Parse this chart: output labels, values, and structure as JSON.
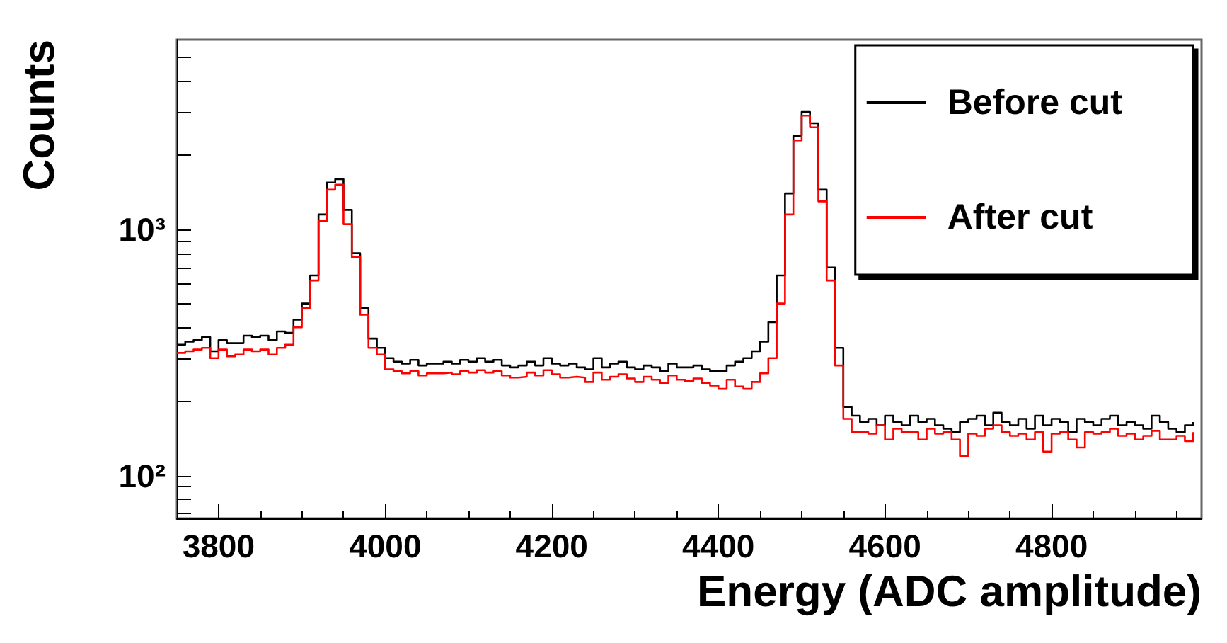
{
  "chart_data": {
    "type": "step",
    "xlabel": "Energy (ADC amplitude)",
    "ylabel": "Counts",
    "x": [
      3750,
      3760,
      3770,
      3780,
      3790,
      3800,
      3810,
      3820,
      3830,
      3840,
      3850,
      3860,
      3870,
      3880,
      3890,
      3900,
      3910,
      3920,
      3930,
      3940,
      3950,
      3960,
      3970,
      3980,
      3990,
      4000,
      4010,
      4020,
      4030,
      4040,
      4050,
      4060,
      4070,
      4080,
      4090,
      4100,
      4110,
      4120,
      4130,
      4140,
      4150,
      4160,
      4170,
      4180,
      4190,
      4200,
      4210,
      4220,
      4230,
      4240,
      4250,
      4260,
      4270,
      4280,
      4290,
      4300,
      4310,
      4320,
      4330,
      4340,
      4350,
      4360,
      4370,
      4380,
      4390,
      4400,
      4410,
      4420,
      4430,
      4440,
      4450,
      4460,
      4470,
      4480,
      4490,
      4500,
      4510,
      4520,
      4530,
      4540,
      4550,
      4560,
      4570,
      4580,
      4590,
      4600,
      4610,
      4620,
      4630,
      4640,
      4650,
      4660,
      4670,
      4680,
      4690,
      4700,
      4710,
      4720,
      4730,
      4740,
      4750,
      4760,
      4770,
      4780,
      4790,
      4800,
      4810,
      4820,
      4830,
      4840,
      4850,
      4860,
      4870,
      4880,
      4890,
      4900,
      4910,
      4920,
      4930,
      4940,
      4950,
      4960,
      4970
    ],
    "series": [
      {
        "name": "Before cut",
        "color": "#000000",
        "values": [
          340,
          350,
          355,
          365,
          320,
          355,
          345,
          345,
          370,
          365,
          370,
          355,
          385,
          380,
          430,
          500,
          650,
          1150,
          1550,
          1600,
          1200,
          800,
          480,
          360,
          330,
          300,
          290,
          285,
          295,
          280,
          285,
          285,
          290,
          285,
          295,
          290,
          300,
          290,
          295,
          280,
          275,
          280,
          290,
          280,
          300,
          285,
          280,
          285,
          275,
          270,
          300,
          275,
          285,
          290,
          275,
          270,
          280,
          275,
          265,
          285,
          275,
          275,
          280,
          270,
          265,
          265,
          280,
          290,
          300,
          320,
          350,
          420,
          650,
          1400,
          2400,
          3000,
          2700,
          1450,
          700,
          330,
          190,
          175,
          165,
          170,
          160,
          175,
          165,
          160,
          175,
          165,
          170,
          160,
          155,
          150,
          165,
          170,
          175,
          160,
          180,
          165,
          160,
          170,
          155,
          175,
          160,
          170,
          165,
          150,
          170,
          165,
          160,
          170,
          175,
          160,
          165,
          160,
          155,
          175,
          165,
          155,
          150,
          160,
          165
        ]
      },
      {
        "name": "After cut",
        "color": "#ff0000",
        "values": [
          315,
          320,
          325,
          330,
          300,
          325,
          305,
          310,
          325,
          320,
          325,
          310,
          330,
          340,
          400,
          480,
          620,
          1080,
          1450,
          1520,
          1050,
          770,
          450,
          330,
          310,
          270,
          265,
          260,
          265,
          255,
          260,
          260,
          262,
          258,
          265,
          262,
          268,
          262,
          265,
          255,
          250,
          252,
          262,
          255,
          268,
          258,
          250,
          252,
          250,
          240,
          262,
          245,
          252,
          258,
          248,
          240,
          252,
          245,
          238,
          255,
          245,
          242,
          248,
          238,
          232,
          225,
          245,
          230,
          225,
          240,
          260,
          300,
          500,
          1150,
          2300,
          2900,
          2600,
          1300,
          620,
          280,
          170,
          150,
          150,
          148,
          160,
          140,
          155,
          150,
          150,
          140,
          155,
          148,
          150,
          140,
          120,
          148,
          145,
          155,
          160,
          150,
          145,
          148,
          140,
          150,
          125,
          148,
          150,
          140,
          130,
          150,
          148,
          150,
          155,
          145,
          148,
          140,
          145,
          152,
          140,
          140,
          145,
          138,
          150
        ]
      }
    ],
    "xlim": [
      3750,
      4980
    ],
    "xticks": [
      3800,
      4000,
      4200,
      4400,
      4600,
      4800
    ],
    "ylim": [
      67,
      5900
    ],
    "yticks": [
      {
        "value": 70,
        "label": null
      },
      {
        "value": 80,
        "label": null
      },
      {
        "value": 90,
        "label": null
      },
      {
        "value": 100,
        "label": "10²"
      },
      {
        "value": 200,
        "label": null
      },
      {
        "value": 300,
        "label": null
      },
      {
        "value": 400,
        "label": null
      },
      {
        "value": 500,
        "label": null
      },
      {
        "value": 600,
        "label": null
      },
      {
        "value": 700,
        "label": null
      },
      {
        "value": 800,
        "label": null
      },
      {
        "value": 900,
        "label": null
      },
      {
        "value": 1000,
        "label": "10³"
      },
      {
        "value": 2000,
        "label": null
      },
      {
        "value": 3000,
        "label": null
      },
      {
        "value": 4000,
        "label": null
      },
      {
        "value": 5000,
        "label": null
      }
    ],
    "log": "y",
    "grid": false,
    "legend": "top right",
    "marker": "none",
    "line_style": "solid"
  }
}
